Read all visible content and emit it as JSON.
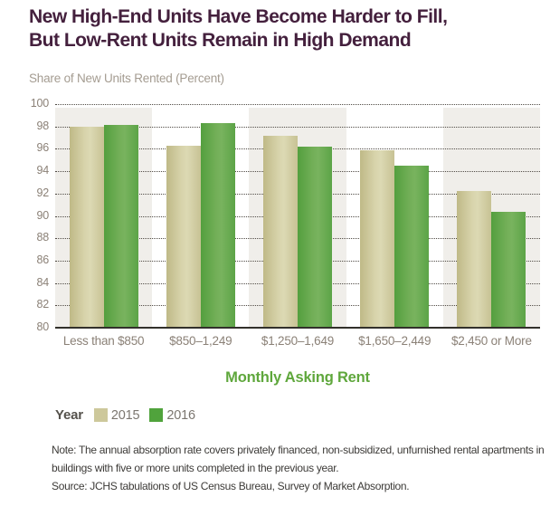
{
  "header": {
    "title_line1": "New High-End Units Have Become Harder to Fill,",
    "title_line2": "But Low-Rent Units Remain in High Demand",
    "subtitle": "Share of New Units Rented (Percent)"
  },
  "chart_data": {
    "type": "bar",
    "title": "New High-End Units Have Become Harder to Fill, But Low-Rent Units Remain in High Demand",
    "categories": [
      "Less than $850",
      "$850–1,249",
      "$1,250–1,649",
      "$1,650–2,449",
      "$2,450 or More"
    ],
    "series": [
      {
        "name": "2015",
        "color": "#cdc89b",
        "values": [
          98.0,
          96.3,
          97.2,
          95.9,
          92.2
        ]
      },
      {
        "name": "2016",
        "color": "#50a33c",
        "values": [
          98.1,
          98.3,
          96.2,
          94.5,
          90.4
        ]
      }
    ],
    "xlabel": "Monthly Asking Rent",
    "ylabel": "Share of New Units Rented (Percent)",
    "ylim": [
      80,
      100
    ],
    "yticks": [
      100,
      98,
      96,
      94,
      92,
      90,
      88,
      86,
      84,
      82,
      80
    ],
    "grid": "horizontal dotted gridlines at each tick",
    "band_shading": "alternating light-gray vertical bands behind categories 1, 3, 5",
    "legend_title": "Year",
    "legend_position": "bottom-left"
  },
  "legend": {
    "title": "Year",
    "items": [
      {
        "label": "2015",
        "color": "#cdc89b"
      },
      {
        "label": "2016",
        "color": "#50a33c"
      }
    ]
  },
  "axis": {
    "x_title": "Monthly Asking Rent"
  },
  "notes": {
    "note_line1": "Note: The annual absorption rate covers privately financed, non-subsidized, unfurnished rental apartments in",
    "note_line2": "buildings with five or more units completed in the previous year.",
    "source": "Source: JCHS tabulations of US Census Bureau, Survey of Market Absorption."
  },
  "colors": {
    "title_text": "#44203d",
    "subtitle_text": "#a49c91",
    "axis_label_text": "#8b8177",
    "x_title_text": "#5fa73c",
    "band_fill": "#f0eeea",
    "baseline": "#32302b",
    "note_text": "#3d3b38"
  }
}
